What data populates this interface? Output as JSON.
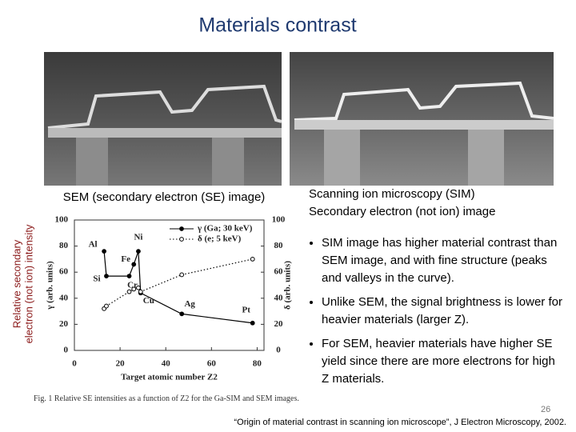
{
  "title": "Materials contrast",
  "captions": {
    "sem": "SEM (secondary electron (SE) image)",
    "sim": [
      "Scanning ion microscopy (SIM)",
      "Secondary electron (not ion) image"
    ]
  },
  "y_label": [
    "Relative secondary",
    "electron (not ion) intensity"
  ],
  "bullets": [
    "SIM image has higher material contrast than SEM image, and with fine structure (peaks and valleys in the curve).",
    "Unlike SEM, the signal brightness is lower for heavier materials (larger Z).",
    "For SEM, heavier materials have higher SE yield since there are more electrons for high Z materials."
  ],
  "page_number": "26",
  "citation": "“Origin of material contrast in scanning ion microscope”, J Electron Microscopy, 2002.",
  "chart_data": {
    "type": "line",
    "caption": "Fig. 1 Relative SE intensities as a function of Z2 for the Ga-SIM and SEM images.",
    "x_label": "Target atomic number Z2",
    "y_label": "γ (arb. units)",
    "y2_label": "δ (arb. units)",
    "x": [
      13,
      14,
      24,
      26,
      28,
      29,
      47,
      78
    ],
    "point_labels": [
      "Al",
      "Si",
      "Cr",
      "Fe",
      "Ni",
      "Cu",
      "Ag",
      "Pt"
    ],
    "series": [
      {
        "name": "γ (Ga; 30 keV)",
        "color": "#000000",
        "line_style": "solid",
        "marker": "filled",
        "values": [
          76,
          57,
          57,
          66,
          76,
          44,
          28,
          21
        ]
      },
      {
        "name": "δ (e; 5 keV)",
        "color": "#000000",
        "line_style": "dotted",
        "marker": "open",
        "axis": "y2",
        "values": [
          32,
          34,
          45,
          47,
          48,
          45,
          58,
          70
        ]
      }
    ],
    "xlim": [
      0,
      83
    ],
    "xticks": [
      0,
      20,
      40,
      60,
      80
    ],
    "ylim": [
      0,
      100
    ],
    "yticks": [
      0,
      20,
      40,
      60,
      80,
      100
    ],
    "y2lim": [
      0,
      100
    ],
    "y2ticks": [
      0,
      20,
      40,
      60,
      80,
      100
    ],
    "legend": "upper right"
  }
}
